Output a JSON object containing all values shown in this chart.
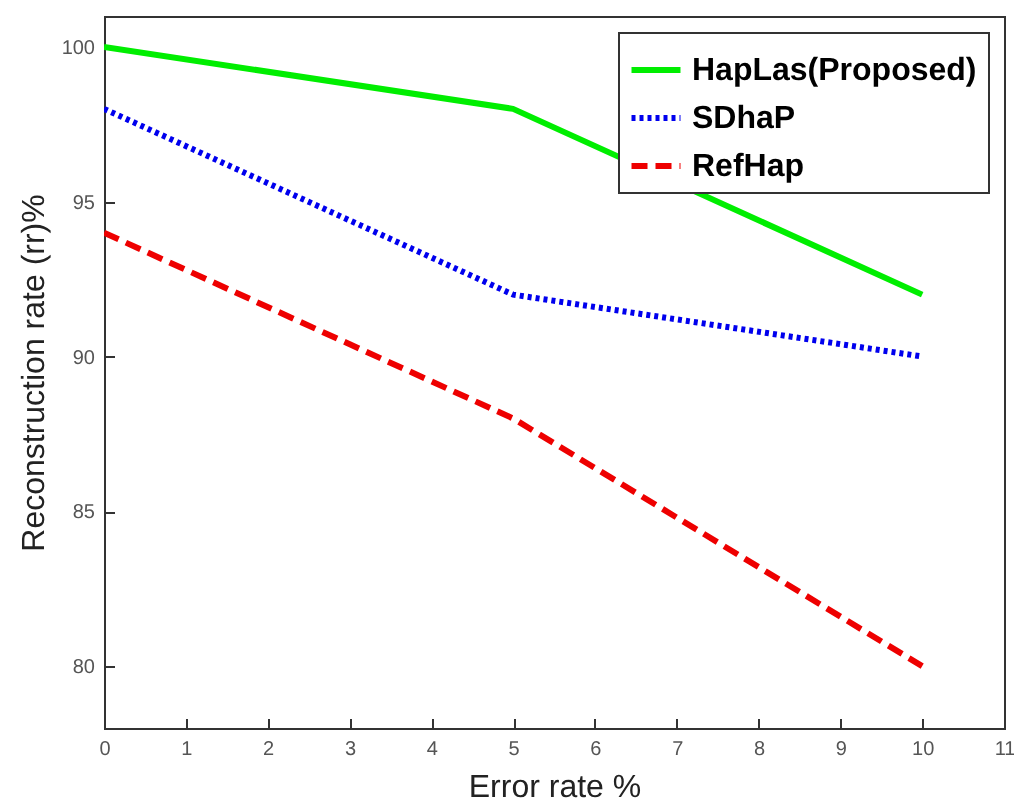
{
  "chart_data": {
    "type": "line",
    "xlabel": "Error rate %",
    "ylabel": "Reconstruction rate (rr)%",
    "x": [
      0,
      5,
      10
    ],
    "series": [
      {
        "name": "HapLas(Proposed)",
        "color": "#00ee00",
        "line_style": "solid",
        "values": [
          100,
          98,
          92
        ]
      },
      {
        "name": "SDhaP",
        "color": "#0000ee",
        "line_style": "dotted",
        "values": [
          98,
          92,
          90
        ]
      },
      {
        "name": "RefHap",
        "color": "#ee0000",
        "line_style": "dashed",
        "values": [
          94,
          88,
          80
        ]
      }
    ],
    "xlim": [
      0,
      11
    ],
    "xticks": [
      0,
      1,
      2,
      3,
      4,
      5,
      6,
      7,
      8,
      9,
      10,
      11
    ],
    "ylim": [
      78,
      101
    ],
    "yticks": [
      80,
      85,
      90,
      95,
      100
    ],
    "grid": false,
    "legend": "top right",
    "marker": "none"
  }
}
